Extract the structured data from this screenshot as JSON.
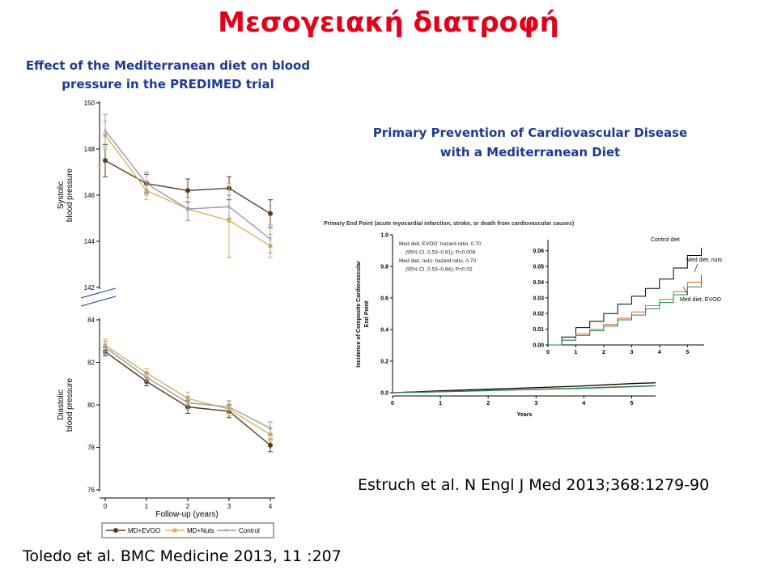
{
  "slide": {
    "title": "Μεσογειακή διατροφή",
    "bp_title_line1": "Effect of the Mediterranean diet on blood",
    "bp_title_line2": "pressure in the PREDIMED trial",
    "cv_title_line1": "Primary Prevention of Cardiovascular Disease",
    "cv_title_line2": "with a Mediterranean Diet",
    "ref_left": "Toledo et al. BMC Medicine 2013, 11 :207",
    "ref_right": "Estruch et al. N Engl J Med 2013;368:1279-90"
  },
  "colors": {
    "title_red": "#e2001a",
    "subtitle_blue": "#1f3a93",
    "evoo_bp": "#5a3a1e",
    "nuts_bp": "#d9b45a",
    "control_bp": "#9a9ab0",
    "control_km": "#000000",
    "nuts_km": "#e0641e",
    "evoo_km": "#1a8a5a"
  },
  "chart_data": [
    {
      "type": "line",
      "panel": "systolic",
      "ylabel_line1": "Systolic",
      "ylabel_line2": "blood pressure",
      "ylim": [
        142,
        150
      ],
      "yticks": [
        142,
        144,
        146,
        148,
        150
      ],
      "x": [
        0,
        1,
        2,
        3,
        4
      ],
      "series": [
        {
          "name": "MD+EVOO",
          "values": [
            147.5,
            146.5,
            146.2,
            146.3,
            145.2
          ],
          "err": [
            0.7,
            0.4,
            0.5,
            0.5,
            0.6
          ]
        },
        {
          "name": "MD+Nuts",
          "values": [
            148.6,
            146.2,
            145.4,
            144.9,
            143.8
          ],
          "err": [
            0.6,
            0.4,
            0.5,
            1.6,
            0.5
          ]
        },
        {
          "name": "Control",
          "values": [
            148.8,
            146.5,
            145.4,
            145.5,
            144.1
          ],
          "err": [
            0.7,
            0.5,
            0.5,
            0.5,
            0.6
          ]
        }
      ]
    },
    {
      "type": "line",
      "panel": "diastolic",
      "ylabel_line1": "Diastolic",
      "ylabel_line2": "blood pressure",
      "xlabel": "Follow-up (years)",
      "ylim": [
        76,
        84
      ],
      "yticks": [
        76,
        78,
        80,
        82,
        84
      ],
      "x": [
        0,
        1,
        2,
        3,
        4
      ],
      "xticks": [
        "0",
        "1",
        "2",
        "3",
        "4"
      ],
      "series": [
        {
          "name": "MD+EVOO",
          "values": [
            82.5,
            81.1,
            79.9,
            79.7,
            78.1
          ],
          "err": [
            0.2,
            0.2,
            0.3,
            0.3,
            0.3
          ]
        },
        {
          "name": "MD+Nuts",
          "values": [
            82.8,
            81.5,
            80.3,
            79.8,
            78.6
          ],
          "err": [
            0.3,
            0.2,
            0.3,
            0.3,
            0.3
          ]
        },
        {
          "name": "Control",
          "values": [
            82.7,
            81.3,
            80.1,
            79.9,
            78.9
          ],
          "err": [
            0.3,
            0.2,
            0.3,
            0.3,
            0.3
          ]
        }
      ],
      "legend": [
        "MD+EVOO",
        "MD+Nuts",
        "Control"
      ]
    },
    {
      "type": "line",
      "panel": "km-main",
      "title": "Primary End Point (acute myocardial infarction, stroke, or death from cardiovascular causes)",
      "ylabel_line1": "Incidence of Composite Cardiovascular",
      "ylabel_line2": "End Point",
      "xlabel": "Years",
      "xlim": [
        0,
        5.5
      ],
      "ylim": [
        0,
        1.0
      ],
      "xticks": [
        "0",
        "1",
        "2",
        "3",
        "4",
        "5"
      ],
      "yticks": [
        "0.0",
        "0.2",
        "0.4",
        "0.6",
        "0.8",
        "1.0"
      ],
      "annotation_lines": [
        "Med diet, EVOO: hazard ratio, 0.70",
        "(95% CI, 0.53–0.91); P=0.009",
        "Med diet, nuts: hazard ratio, 0.70",
        "(95% CI, 0.53–0.94); P=0.02"
      ],
      "series": [
        {
          "name": "Control diet",
          "x": [
            0,
            1,
            2,
            3,
            4,
            5,
            5.5
          ],
          "values": [
            0,
            0.012,
            0.022,
            0.032,
            0.043,
            0.058,
            0.063
          ]
        },
        {
          "name": "Med diet, nuts",
          "x": [
            0,
            1,
            2,
            3,
            4,
            5,
            5.5
          ],
          "values": [
            0,
            0.007,
            0.014,
            0.022,
            0.03,
            0.04,
            0.045
          ]
        },
        {
          "name": "Med diet, EVOO",
          "x": [
            0,
            1,
            2,
            3,
            4,
            5,
            5.5
          ],
          "values": [
            0,
            0.006,
            0.013,
            0.021,
            0.028,
            0.038,
            0.044
          ]
        }
      ]
    },
    {
      "type": "line",
      "panel": "km-inset",
      "xlim": [
        0,
        5.6
      ],
      "ylim": [
        0,
        0.065
      ],
      "xticks": [
        "0",
        "1",
        "2",
        "3",
        "4",
        "5"
      ],
      "yticks": [
        "0.00",
        "0.01",
        "0.02",
        "0.03",
        "0.04",
        "0.05",
        "0.06"
      ],
      "series": [
        {
          "name": "Control diet",
          "x": [
            0,
            0.5,
            1,
            1.5,
            2,
            2.5,
            3,
            3.5,
            4,
            4.5,
            5,
            5.5
          ],
          "values": [
            0,
            0.005,
            0.011,
            0.015,
            0.02,
            0.026,
            0.031,
            0.036,
            0.042,
            0.049,
            0.057,
            0.062
          ]
        },
        {
          "name": "Med diet, nuts",
          "x": [
            0,
            0.5,
            1,
            1.5,
            2,
            2.5,
            3,
            3.5,
            4,
            4.5,
            5,
            5.5
          ],
          "values": [
            0,
            0.003,
            0.007,
            0.01,
            0.013,
            0.017,
            0.021,
            0.025,
            0.029,
            0.034,
            0.04,
            0.045
          ]
        },
        {
          "name": "Med diet, EVOO",
          "x": [
            0,
            0.5,
            1,
            1.5,
            2,
            2.5,
            3,
            3.5,
            4,
            4.5,
            5,
            5.5
          ],
          "values": [
            0,
            0.003,
            0.006,
            0.009,
            0.012,
            0.016,
            0.019,
            0.023,
            0.027,
            0.032,
            0.037,
            0.044
          ]
        }
      ],
      "labels": [
        "Control diet",
        "Med diet, nuts",
        "Med diet, EVOO"
      ]
    }
  ]
}
